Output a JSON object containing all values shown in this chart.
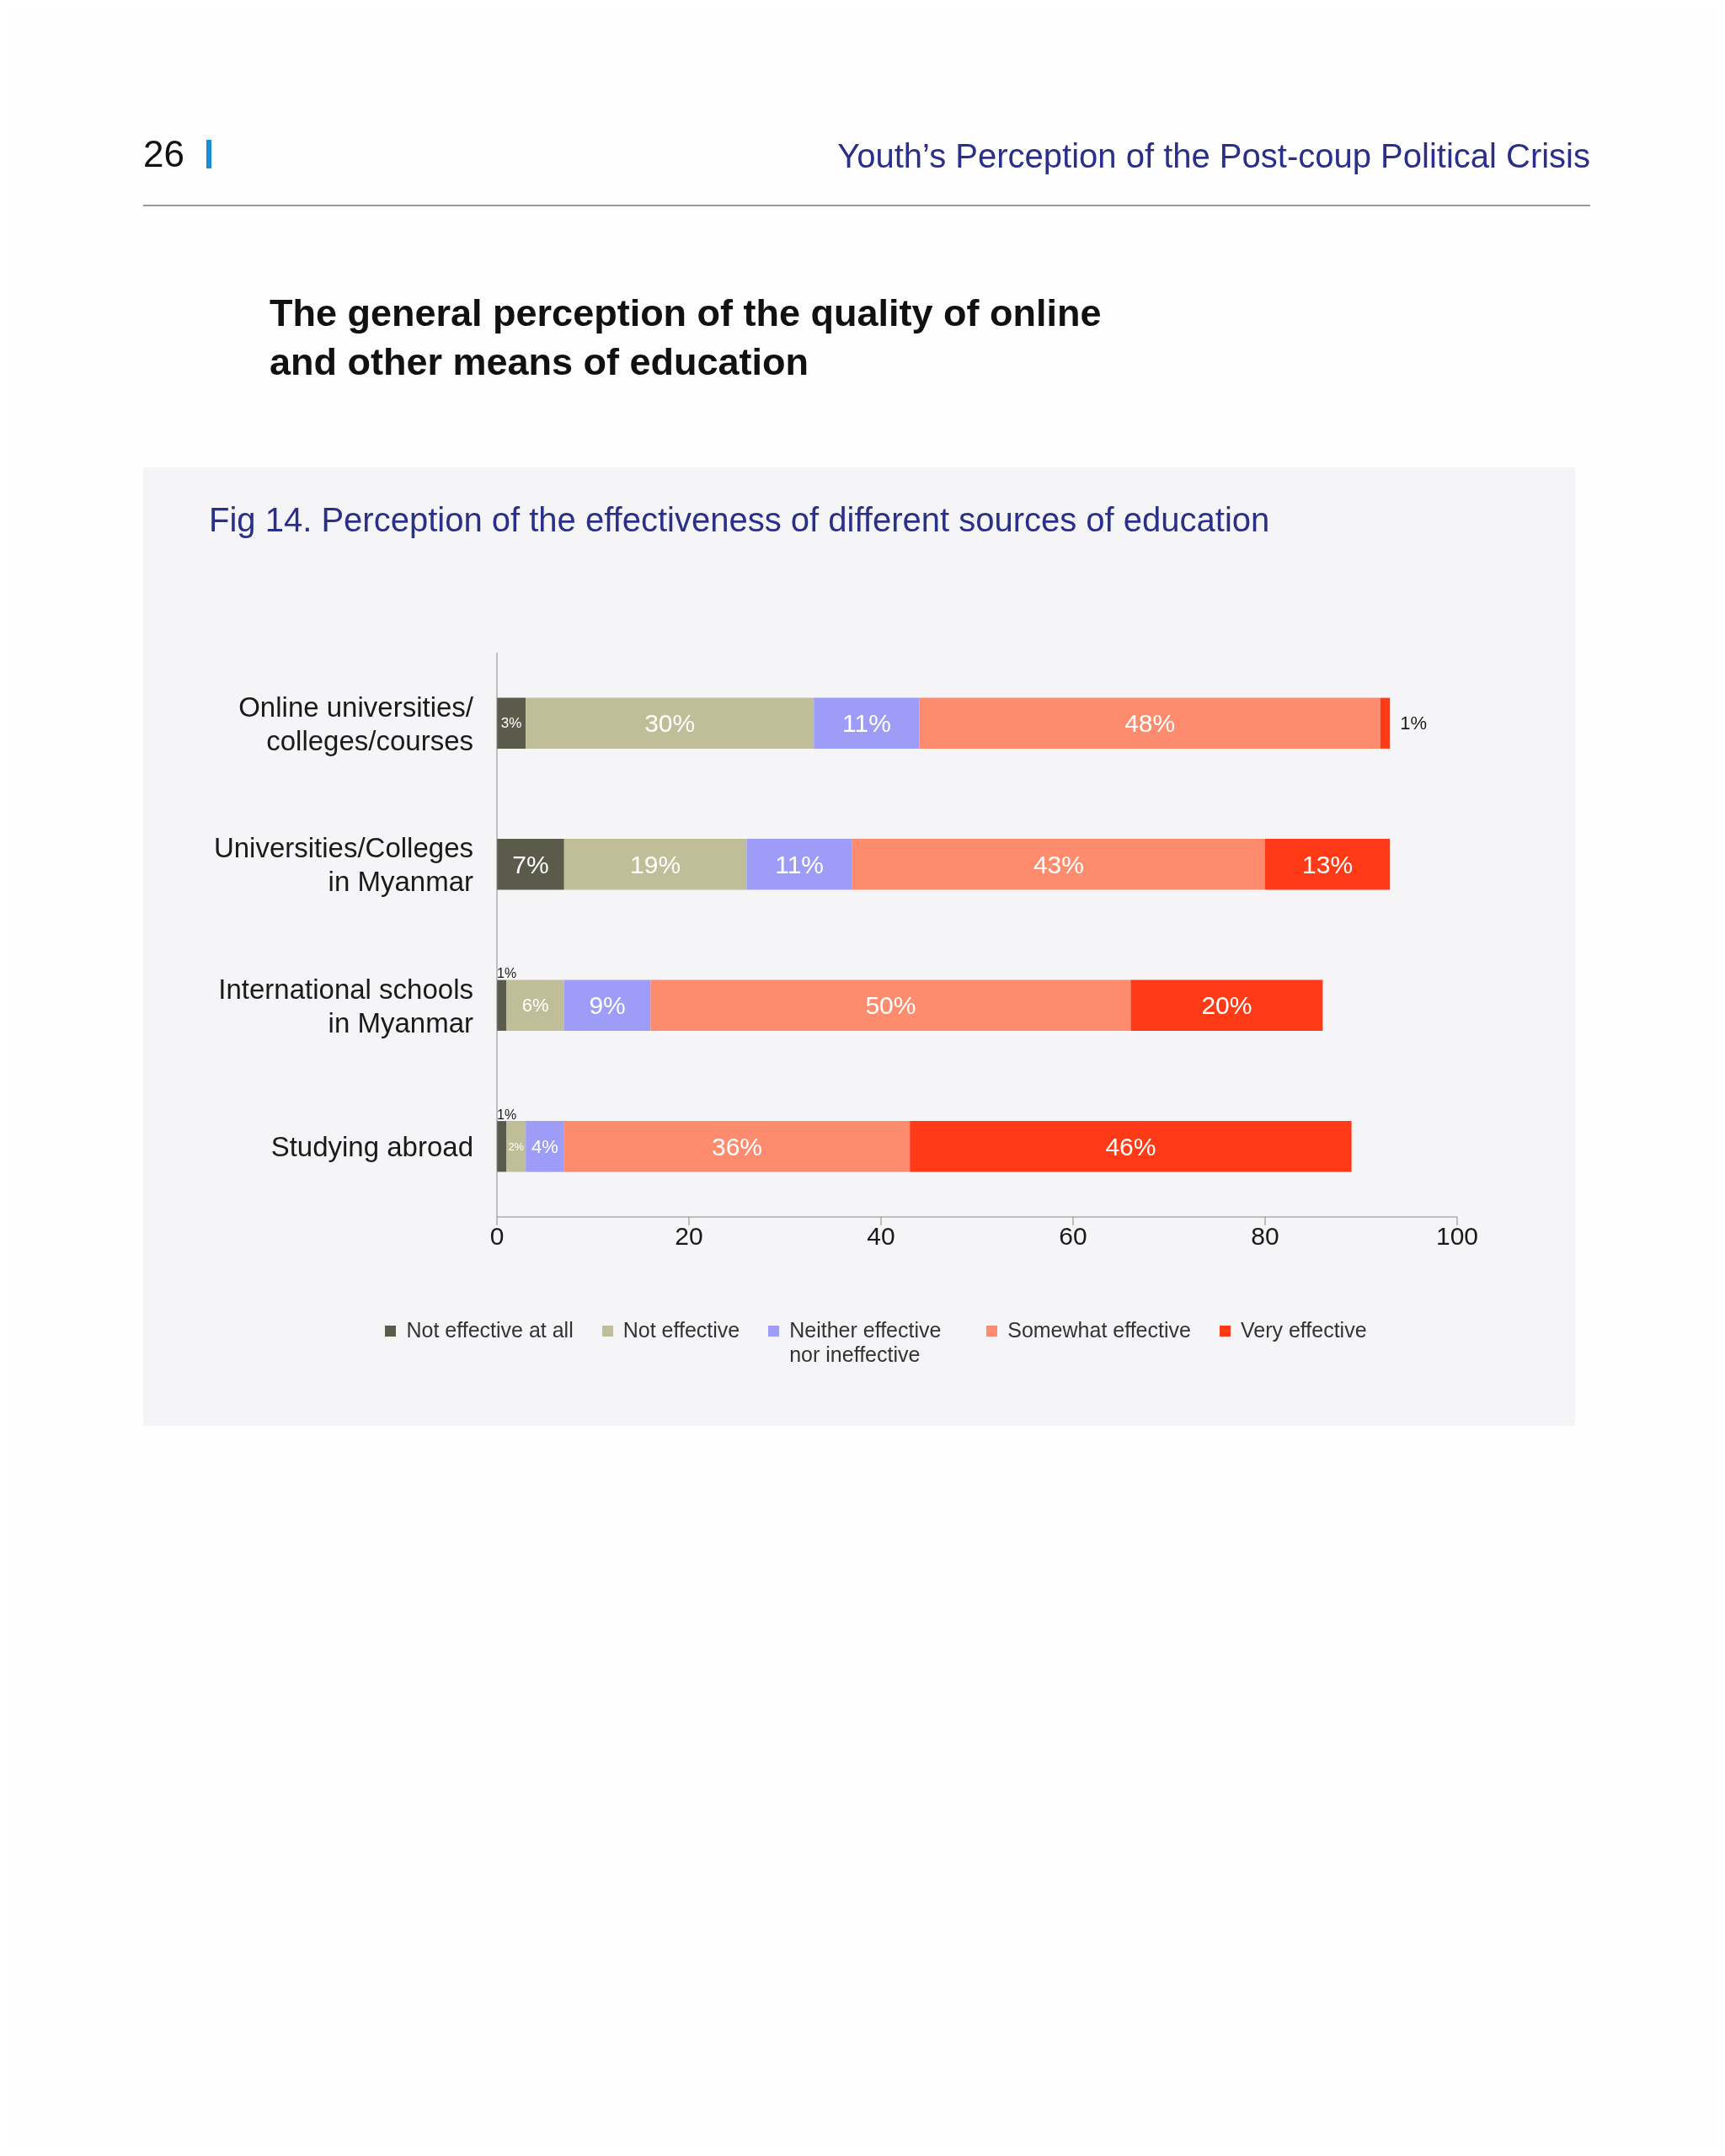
{
  "chart_data": {
    "type": "bar",
    "orientation": "horizontal",
    "stacked": true,
    "title": "Fig 14. Perception of the effectiveness of different sources of education",
    "annotations": [
      "26",
      "Youth’s Perception of the Post-coup Political Crisis",
      "The general perception of the quality of online and other means of education"
    ],
    "categories": [
      "Online universities/ colleges/courses",
      "Universities/Colleges in Myanmar",
      "International schools in Myanmar",
      "Studying abroad"
    ],
    "series": [
      {
        "name": "Not effective at all",
        "color": "#5b5b4c",
        "values": [
          3,
          7,
          1,
          1
        ],
        "value_labels": [
          "3%",
          "7%",
          "1%",
          "1%"
        ]
      },
      {
        "name": "Not effective",
        "color": "#bfbe98",
        "values": [
          30,
          19,
          6,
          2
        ],
        "value_labels": [
          "30%",
          "19%",
          "6%",
          "2%"
        ]
      },
      {
        "name": "Neither effective nor ineffective",
        "color": "#9d9df7",
        "values": [
          11,
          11,
          9,
          4
        ],
        "value_labels": [
          "11%",
          "11%",
          "9%",
          "4%"
        ]
      },
      {
        "name": "Somewhat effective",
        "color": "#fd8b6e",
        "values": [
          48,
          43,
          50,
          36
        ],
        "value_labels": [
          "48%",
          "43%",
          "50%",
          "36%"
        ]
      },
      {
        "name": "Very effective",
        "color": "#ff3b17",
        "values": [
          1,
          13,
          20,
          46
        ],
        "value_labels": [
          "1%",
          "13%",
          "20%",
          "46%"
        ]
      }
    ],
    "xlim": [
      0,
      100
    ],
    "xticks": [
      0,
      20,
      40,
      60,
      80,
      100
    ],
    "grid": false,
    "legend": "bottom"
  }
}
